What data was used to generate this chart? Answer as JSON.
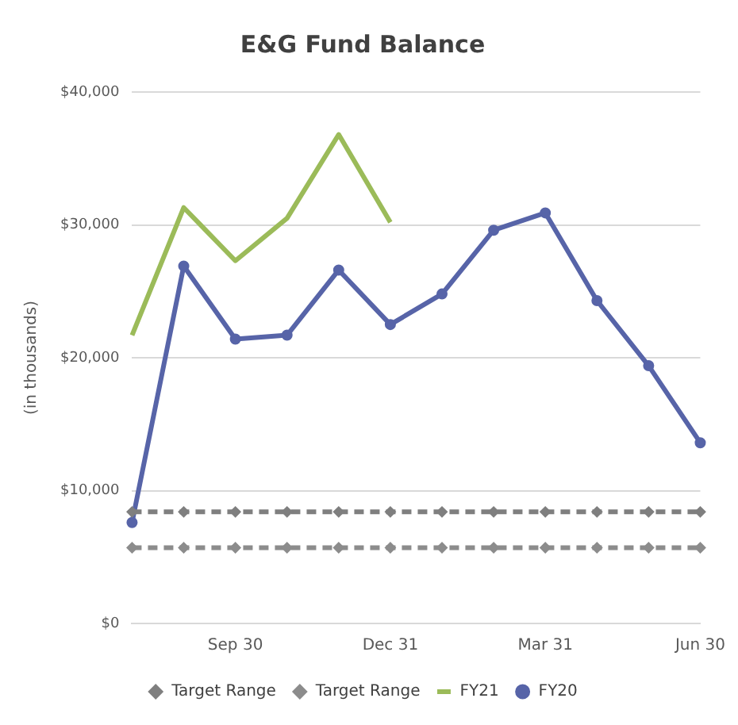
{
  "chart_data": {
    "type": "line",
    "title": "E&G Fund Balance",
    "ylabel": "(in thousands)",
    "categories": [
      null,
      null,
      "Sep 30",
      null,
      null,
      "Dec 31",
      null,
      null,
      "Mar 31",
      null,
      null,
      "Jun 30"
    ],
    "series": [
      {
        "name": "Target Range",
        "color": "#7f7f7f",
        "line_style": "dashed",
        "marker": "diamond",
        "values": [
          8400,
          8400,
          8400,
          8400,
          8400,
          8400,
          8400,
          8400,
          8400,
          8400,
          8400,
          8400
        ]
      },
      {
        "name": "Target Range",
        "color": "#8c8c8c",
        "line_style": "dashed",
        "marker": "diamond",
        "values": [
          5700,
          5700,
          5700,
          5700,
          5700,
          5700,
          5700,
          5700,
          5700,
          5700,
          5700,
          5700
        ]
      },
      {
        "name": "FY21",
        "color": "#9bbb59",
        "line_style": "solid",
        "marker": "none",
        "values": [
          21700,
          31300,
          27300,
          30500,
          36800,
          30200,
          null,
          null,
          null,
          null,
          null,
          null
        ]
      },
      {
        "name": "FY20",
        "color": "#5764a8",
        "line_style": "solid",
        "marker": "circle",
        "values": [
          7600,
          26900,
          21400,
          21700,
          26600,
          22500,
          24800,
          29600,
          30900,
          24300,
          19400,
          13600
        ]
      }
    ],
    "ylim": [
      0,
      40000
    ],
    "yticks": [
      {
        "value": 0,
        "label": "$0"
      },
      {
        "value": 10000,
        "label": "$10,000"
      },
      {
        "value": 20000,
        "label": "$20,000"
      },
      {
        "value": 30000,
        "label": "$30,000"
      },
      {
        "value": 40000,
        "label": "$40,000"
      }
    ],
    "grid": "y",
    "legend": "bottom"
  }
}
